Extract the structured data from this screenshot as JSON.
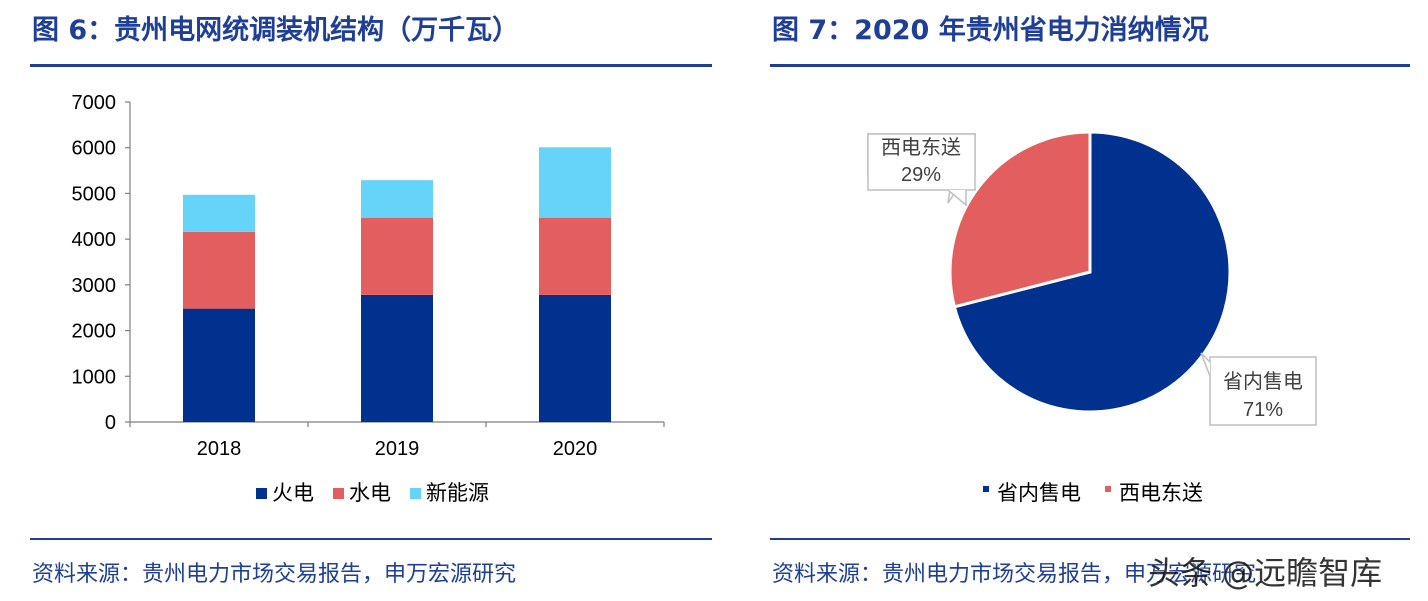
{
  "fig6": {
    "title": "图 6：贵州电网统调装机结构（万千瓦）",
    "source": "资料来源：贵州电力市场交易报告，申万宏源研究"
  },
  "fig7": {
    "title": "图 7：2020 年贵州省电力消纳情况",
    "source": "资料来源：贵州电力市场交易报告，申万宏源研究"
  },
  "watermark": "头条 @远瞻智库",
  "chart_data": [
    {
      "type": "bar",
      "stacked": true,
      "categories": [
        "2018",
        "2019",
        "2020"
      ],
      "series": [
        {
          "name": "火电",
          "color": "#00318f",
          "values": [
            2480,
            2780,
            2780
          ]
        },
        {
          "name": "水电",
          "color": "#e35f5f",
          "values": [
            1680,
            1690,
            1690
          ]
        },
        {
          "name": "新能源",
          "color": "#66d4f8",
          "values": [
            810,
            820,
            1540
          ]
        }
      ],
      "ylim": [
        0,
        7000
      ],
      "yticks": [
        "0",
        "1000",
        "2000",
        "3000",
        "4000",
        "5000",
        "6000",
        "7000"
      ],
      "legend": "bottom"
    },
    {
      "type": "pie",
      "slices": [
        {
          "name": "省内售电",
          "value": 71,
          "label": "71%",
          "color": "#00318f"
        },
        {
          "name": "西电东送",
          "value": 29,
          "label": "29%",
          "color": "#e35f5f"
        }
      ],
      "legend": "bottom"
    }
  ]
}
